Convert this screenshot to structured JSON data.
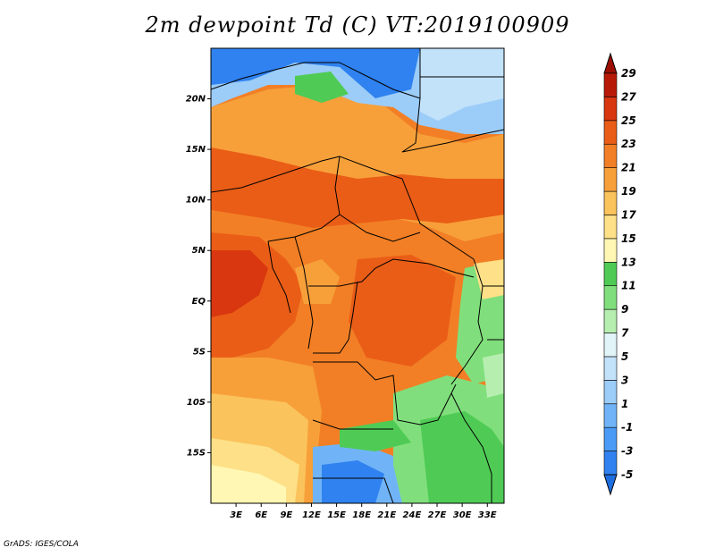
{
  "title": "2m dewpoint Td (C) VT:2019100909",
  "credit": "GrADS: IGES/COLA",
  "map": {
    "lon_range": [
      0,
      35
    ],
    "lat_range": [
      -20,
      25
    ],
    "lat_ticks": [
      {
        "lat": 20,
        "label": "20N"
      },
      {
        "lat": 15,
        "label": "15N"
      },
      {
        "lat": 10,
        "label": "10N"
      },
      {
        "lat": 5,
        "label": "5N"
      },
      {
        "lat": 0,
        "label": "EQ"
      },
      {
        "lat": -5,
        "label": "5S"
      },
      {
        "lat": -10,
        "label": "10S"
      },
      {
        "lat": -15,
        "label": "15S"
      }
    ],
    "lon_ticks": [
      {
        "lon": 3,
        "label": "3E"
      },
      {
        "lon": 6,
        "label": "6E"
      },
      {
        "lon": 9,
        "label": "9E"
      },
      {
        "lon": 12,
        "label": "12E"
      },
      {
        "lon": 15,
        "label": "15E"
      },
      {
        "lon": 18,
        "label": "18E"
      },
      {
        "lon": 21,
        "label": "21E"
      },
      {
        "lon": 24,
        "label": "24E"
      },
      {
        "lon": 27,
        "label": "27E"
      },
      {
        "lon": 30,
        "label": "30E"
      },
      {
        "lon": 33,
        "label": "33E"
      }
    ]
  },
  "colorbar": {
    "levels": [
      "-5",
      "-3",
      "-1",
      "1",
      "3",
      "5",
      "7",
      "9",
      "11",
      "13",
      "15",
      "17",
      "19",
      "21",
      "23",
      "25",
      "27",
      "29"
    ],
    "colors": [
      "#1e6ee0",
      "#2f82ef",
      "#4a9bf5",
      "#70b4f7",
      "#9cccf8",
      "#c2e2fa",
      "#e1f4f7",
      "#b6eeb0",
      "#80df7c",
      "#4fcb55",
      "#fff7b3",
      "#fde087",
      "#fbc35c",
      "#f7a03a",
      "#f27f25",
      "#ea5d17",
      "#d8370f",
      "#b81a08",
      "#9a0e04"
    ]
  }
}
